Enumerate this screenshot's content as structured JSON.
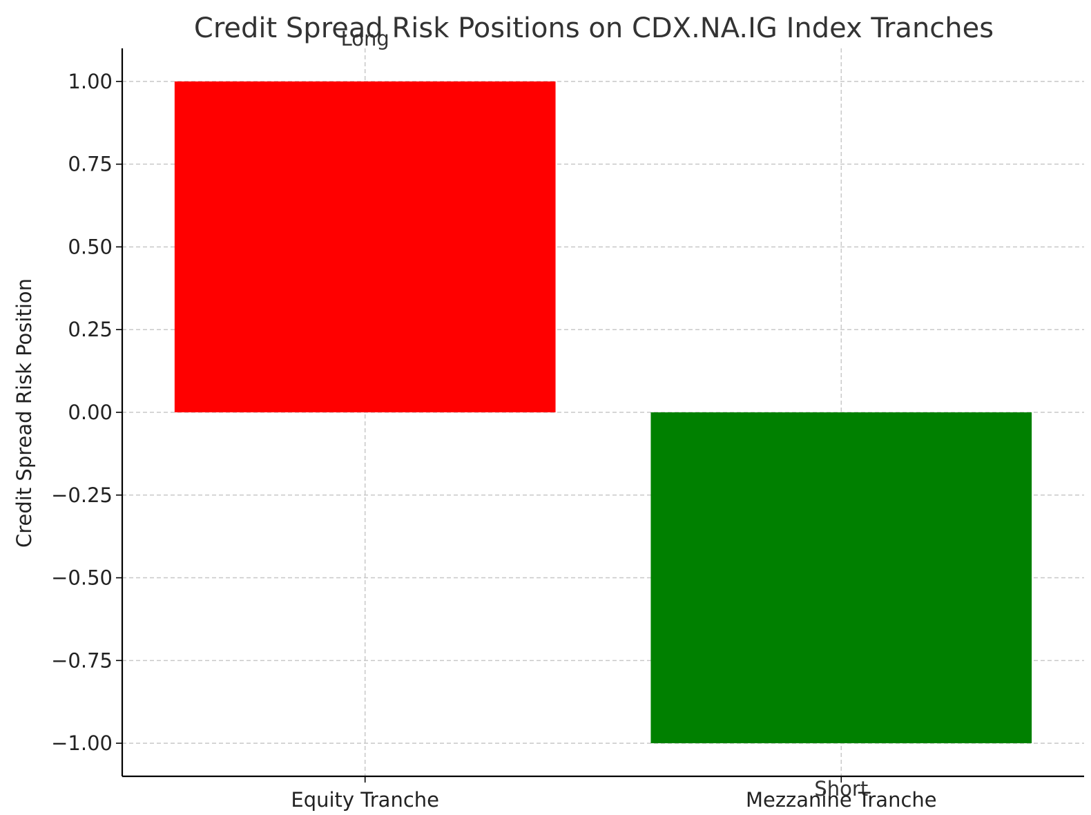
{
  "chart_data": {
    "type": "bar",
    "title": "Credit Spread Risk Positions on CDX.NA.IG Index Tranches",
    "xlabel": "",
    "ylabel": "Credit Spread Risk Position",
    "categories": [
      "Equity Tranche",
      "Mezzanine Tranche"
    ],
    "values": [
      1,
      -1
    ],
    "colors": [
      "#ff0000",
      "#008000"
    ],
    "annotations": [
      "Long",
      "Short"
    ],
    "ylim": [
      -1.1,
      1.1
    ],
    "yticks": [
      1.0,
      0.75,
      0.5,
      0.25,
      0.0,
      -0.25,
      -0.5,
      -0.75,
      -1.0
    ],
    "ytick_labels": [
      "1.00",
      "0.75",
      "0.50",
      "0.25",
      "0.00",
      "−0.25",
      "−0.50",
      "−0.75",
      "−1.00"
    ],
    "grid": true
  }
}
